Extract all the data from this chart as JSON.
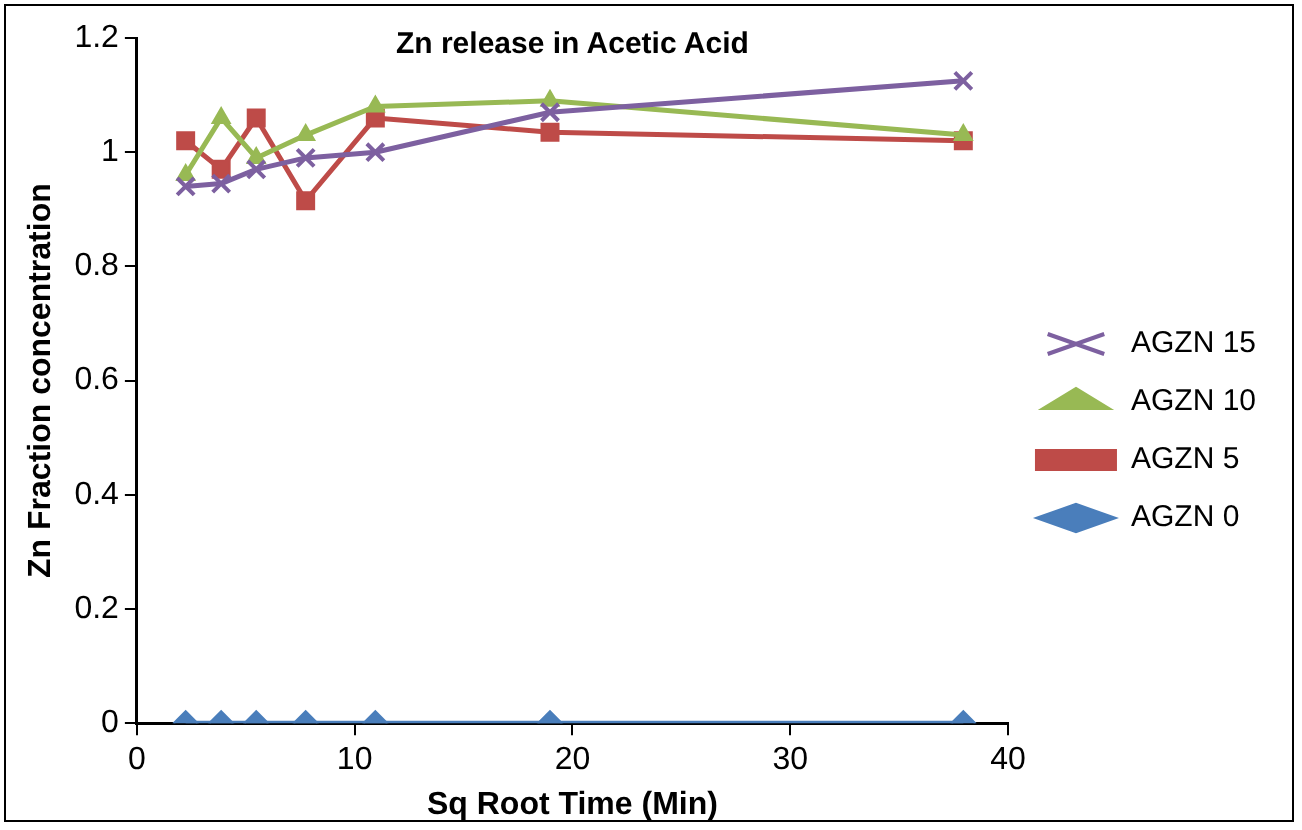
{
  "chart_data": {
    "type": "line",
    "title": "Zn release in Acetic Acid",
    "xlabel": "Sq Root Time (Min)",
    "ylabel": "Zn Fraction concentration",
    "x": [
      2.24,
      3.87,
      5.48,
      7.75,
      10.95,
      18.97,
      37.95
    ],
    "series": [
      {
        "name": "AGZN 0",
        "color": "#4a7ebb",
        "marker": "diamond",
        "values": [
          0,
          0,
          0,
          0,
          0,
          0,
          0
        ]
      },
      {
        "name": "AGZN 5",
        "color": "#be4b48",
        "marker": "square",
        "values": [
          1.02,
          0.97,
          1.06,
          0.915,
          1.06,
          1.035,
          1.02
        ]
      },
      {
        "name": "AGZN 10",
        "color": "#98b954",
        "marker": "triangle",
        "values": [
          0.96,
          1.06,
          0.99,
          1.03,
          1.08,
          1.09,
          1.03
        ]
      },
      {
        "name": "AGZN 15",
        "color": "#7d60a0",
        "marker": "cross",
        "values": [
          0.94,
          0.945,
          0.97,
          0.99,
          1.0,
          1.07,
          1.125
        ]
      }
    ],
    "xlim": [
      0,
      40
    ],
    "xticks": [
      0,
      10,
      20,
      30,
      40
    ],
    "ylim": [
      0,
      1.2
    ],
    "yticks": [
      0,
      0.2,
      0.4,
      0.6,
      0.8,
      1,
      1.2
    ],
    "grid": false,
    "legend": "right",
    "line_style": "solid"
  }
}
